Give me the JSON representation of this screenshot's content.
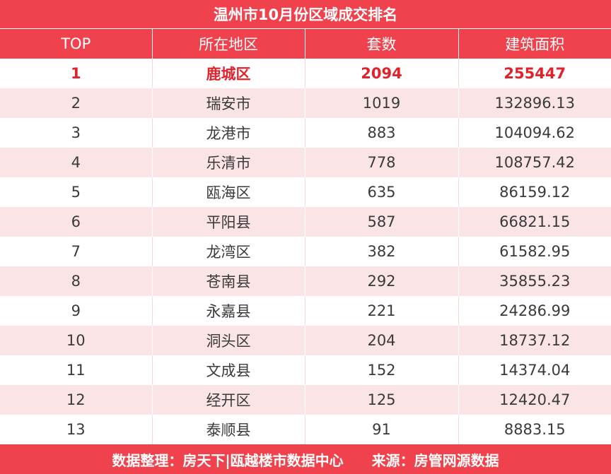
{
  "chart_data": {
    "type": "table",
    "title": "温州市10月份区域成交排名",
    "columns": [
      "TOP",
      "所在地区",
      "套数",
      "建筑面积"
    ],
    "rows": [
      [
        "1",
        "鹿城区",
        "2094",
        "255447"
      ],
      [
        "2",
        "瑞安市",
        "1019",
        "132896.13"
      ],
      [
        "3",
        "龙港市",
        "883",
        "104094.62"
      ],
      [
        "4",
        "乐清市",
        "778",
        "108757.42"
      ],
      [
        "5",
        "瓯海区",
        "635",
        "86159.12"
      ],
      [
        "6",
        "平阳县",
        "587",
        "66821.15"
      ],
      [
        "7",
        "龙湾区",
        "382",
        "61582.95"
      ],
      [
        "8",
        "苍南县",
        "292",
        "35855.23"
      ],
      [
        "9",
        "永嘉县",
        "221",
        "24286.99"
      ],
      [
        "10",
        "洞头区",
        "204",
        "18737.12"
      ],
      [
        "11",
        "文成县",
        "152",
        "14374.04"
      ],
      [
        "12",
        "经开区",
        "125",
        "12420.47"
      ],
      [
        "13",
        "泰顺县",
        "91",
        "8883.15"
      ]
    ]
  },
  "footer": {
    "compiled_by": "数据整理：房天下|瓯越楼市数据中心",
    "source": "来源：房管网源数据"
  },
  "colors": {
    "header_red": "#f0424c",
    "highlight_red": "#e0222b",
    "stripe_pink": "#fbe4e6"
  }
}
